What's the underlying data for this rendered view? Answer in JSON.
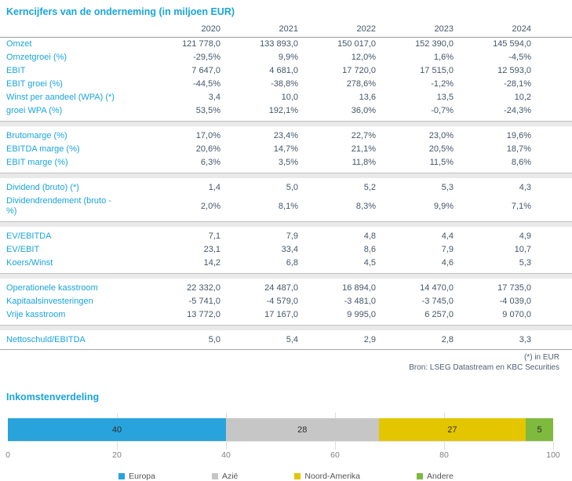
{
  "colors": {
    "accent": "#1aa4dd",
    "value_text": "#44566b",
    "separator_band": "#e9e9e9",
    "europa_blue": "#29a3dc",
    "azie_gray": "#c6c6c6",
    "noord_amerika_yellow": "#e3c600",
    "andere_green": "#7fb93e"
  },
  "table": {
    "title": "Kerncijfers van de onderneming (in miljoen EUR)",
    "years": [
      "2020",
      "2021",
      "2022",
      "2023",
      "2024"
    ],
    "groups": [
      {
        "rows": [
          {
            "label": "Omzet",
            "values": [
              "121 778,0",
              "133 893,0",
              "150 017,0",
              "152 390,0",
              "145 594,0"
            ]
          },
          {
            "label": "Omzetgroei (%)",
            "values": [
              "-29,5%",
              "9,9%",
              "12,0%",
              "1,6%",
              "-4,5%"
            ]
          },
          {
            "label": "EBIT",
            "values": [
              "7 647,0",
              "4 681,0",
              "17 720,0",
              "17 515,0",
              "12 593,0"
            ]
          },
          {
            "label": "EBIT groei (%)",
            "values": [
              "-44,5%",
              "-38,8%",
              "278,6%",
              "-1,2%",
              "-28,1%"
            ]
          },
          {
            "label": "Winst per aandeel (WPA) (*)",
            "values": [
              "3,4",
              "10,0",
              "13,6",
              "13,5",
              "10,2"
            ]
          },
          {
            "label": "groei WPA (%)",
            "values": [
              "53,5%",
              "192,1%",
              "36,0%",
              "-0,7%",
              "-24,3%"
            ]
          }
        ]
      },
      {
        "rows": [
          {
            "label": "Brutomarge (%)",
            "values": [
              "17,0%",
              "23,4%",
              "22,7%",
              "23,0%",
              "19,6%"
            ]
          },
          {
            "label": "EBITDA marge (%)",
            "values": [
              "20,6%",
              "14,7%",
              "21,1%",
              "20,5%",
              "18,7%"
            ]
          },
          {
            "label": "EBIT marge (%)",
            "values": [
              "6,3%",
              "3,5%",
              "11,8%",
              "11,5%",
              "8,6%"
            ]
          }
        ]
      },
      {
        "rows": [
          {
            "label": "Dividend (bruto) (*)",
            "values": [
              "1,4",
              "5,0",
              "5,2",
              "5,3",
              "4,3"
            ]
          },
          {
            "label": "Dividendrendement (bruto - %)",
            "values": [
              "2,0%",
              "8,1%",
              "8,3%",
              "9,9%",
              "7,1%"
            ]
          }
        ]
      },
      {
        "rows": [
          {
            "label": "EV/EBITDA",
            "values": [
              "7,1",
              "7,9",
              "4,8",
              "4,4",
              "4,9"
            ]
          },
          {
            "label": "EV/EBIT",
            "values": [
              "23,1",
              "33,4",
              "8,6",
              "7,9",
              "10,7"
            ]
          },
          {
            "label": "Koers/Winst",
            "values": [
              "14,2",
              "6,8",
              "4,5",
              "4,6",
              "5,3"
            ]
          }
        ]
      },
      {
        "rows": [
          {
            "label": "Operationele kasstroom",
            "values": [
              "22 332,0",
              "24 487,0",
              "16 894,0",
              "14 470,0",
              "17 735,0"
            ]
          },
          {
            "label": "Kapitaalsinvesteringen",
            "values": [
              "-5 741,0",
              "-4 579,0",
              "-3 481,0",
              "-3 745,0",
              "-4 039,0"
            ]
          },
          {
            "label": "Vrije kasstroom",
            "values": [
              "13 772,0",
              "17 167,0",
              "9 995,0",
              "6 257,0",
              "9 070,0"
            ]
          }
        ]
      },
      {
        "rows": [
          {
            "label": "Nettoschuld/EBITDA",
            "values": [
              "5,0",
              "5,4",
              "2,9",
              "2,8",
              "3,3"
            ]
          }
        ]
      }
    ],
    "footnotes": [
      "(*) in EUR",
      "Bron: LSEG Datastream en KBC Securities"
    ]
  },
  "chart_data": {
    "type": "bar",
    "title": "Inkomstenverdeling",
    "orientation": "horizontal-stacked",
    "categories": [
      "Europa",
      "Azië",
      "Noord-Amerika",
      "Andere"
    ],
    "values": [
      40,
      28,
      27,
      5
    ],
    "segments": [
      {
        "name": "Europa",
        "value": 40,
        "color": "#29a3dc"
      },
      {
        "name": "Azië",
        "value": 28,
        "color": "#c6c6c6"
      },
      {
        "name": "Noord-Amerika",
        "value": 27,
        "color": "#e3c600"
      },
      {
        "name": "Andere",
        "value": 5,
        "color": "#7fb93e"
      }
    ],
    "xlim": [
      0,
      100
    ],
    "ticks": [
      0,
      20,
      40,
      60,
      80,
      100
    ],
    "grid": false,
    "legend_position": "bottom"
  }
}
